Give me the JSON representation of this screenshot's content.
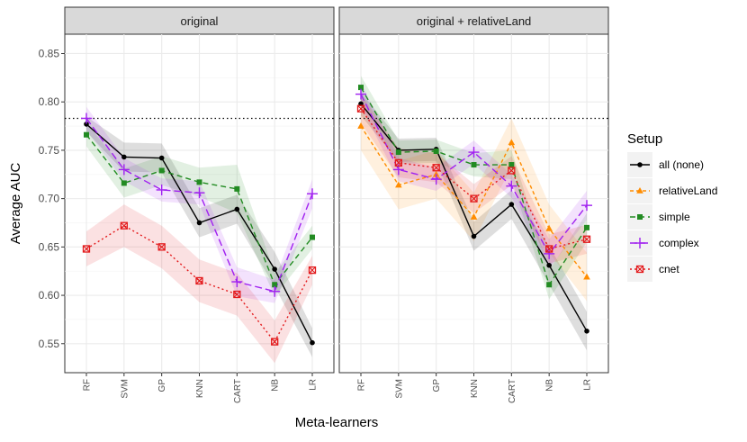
{
  "chart_data": {
    "type": "line",
    "xlabel": "Meta-learners",
    "ylabel": "Average AUC",
    "ylim": [
      0.52,
      0.87
    ],
    "yticks": [
      0.55,
      0.6,
      0.65,
      0.7,
      0.75,
      0.8,
      0.85
    ],
    "ytick_labels": [
      "0.55",
      "0.60",
      "0.65",
      "0.70",
      "0.75",
      "0.80",
      "0.85"
    ],
    "categories": [
      "RF",
      "SVM",
      "GP",
      "KNN",
      "CART",
      "NB",
      "LR"
    ],
    "reference_line": 0.783,
    "legend": {
      "title": "Setup",
      "placement": "right"
    },
    "panels": [
      {
        "title": "original",
        "series": [
          {
            "name": "all (none)",
            "color": "#000000",
            "dash": "",
            "marker": "circle",
            "values": [
              0.777,
              0.743,
              0.742,
              0.675,
              0.689,
              0.627,
              0.551
            ],
            "band_width": [
              0.008,
              0.015,
              0.015,
              0.015,
              0.015,
              0.018,
              0.015
            ]
          },
          {
            "name": "simple",
            "color": "#228B22",
            "dash": "6,4",
            "marker": "square",
            "values": [
              0.766,
              0.716,
              0.729,
              0.717,
              0.71,
              0.611,
              0.66
            ],
            "band_width": [
              0.012,
              0.015,
              0.015,
              0.015,
              0.025,
              0.012,
              0.012
            ]
          },
          {
            "name": "complex",
            "color": "#A020F0",
            "dash": "8,4",
            "marker": "plus",
            "values": [
              0.783,
              0.73,
              0.709,
              0.706,
              0.614,
              0.604,
              0.705
            ],
            "band_width": [
              0.012,
              0.012,
              0.012,
              0.012,
              0.015,
              0.012,
              0.015
            ]
          },
          {
            "name": "cnet",
            "color": "#E31A1C",
            "dash": "2,3",
            "marker": "boxx",
            "values": [
              0.648,
              0.672,
              0.65,
              0.615,
              0.601,
              0.552,
              0.626
            ],
            "band_width": [
              0.018,
              0.022,
              0.022,
              0.022,
              0.022,
              0.022,
              0.015
            ]
          }
        ]
      },
      {
        "title": "original + relativeLand",
        "series": [
          {
            "name": "all (none)",
            "color": "#000000",
            "dash": "",
            "marker": "circle",
            "values": [
              0.798,
              0.75,
              0.751,
              0.661,
              0.694,
              0.631,
              0.563
            ],
            "band_width": [
              0.012,
              0.012,
              0.012,
              0.015,
              0.015,
              0.02,
              0.02
            ]
          },
          {
            "name": "relativeLand",
            "color": "#FF8C00",
            "dash": "4,3",
            "marker": "triangle",
            "values": [
              0.775,
              0.714,
              0.725,
              0.681,
              0.758,
              0.669,
              0.619
            ],
            "band_width": [
              0.025,
              0.025,
              0.025,
              0.025,
              0.025,
              0.025,
              0.025
            ]
          },
          {
            "name": "simple",
            "color": "#228B22",
            "dash": "6,4",
            "marker": "square",
            "values": [
              0.815,
              0.748,
              0.749,
              0.735,
              0.735,
              0.611,
              0.67
            ],
            "band_width": [
              0.012,
              0.012,
              0.012,
              0.012,
              0.015,
              0.015,
              0.015
            ]
          },
          {
            "name": "complex",
            "color": "#A020F0",
            "dash": "8,4",
            "marker": "plus",
            "values": [
              0.808,
              0.73,
              0.72,
              0.748,
              0.713,
              0.643,
              0.693
            ],
            "band_width": [
              0.012,
              0.012,
              0.012,
              0.012,
              0.012,
              0.015,
              0.015
            ]
          },
          {
            "name": "cnet",
            "color": "#E31A1C",
            "dash": "2,3",
            "marker": "boxx",
            "values": [
              0.793,
              0.737,
              0.732,
              0.7,
              0.729,
              0.648,
              0.658
            ],
            "band_width": [
              0.015,
              0.015,
              0.015,
              0.015,
              0.015,
              0.015,
              0.015
            ]
          }
        ]
      }
    ]
  },
  "legend_entries": [
    {
      "name": "all (none)",
      "color": "#000000",
      "dash": "",
      "marker": "circle"
    },
    {
      "name": "relativeLand",
      "color": "#FF8C00",
      "dash": "4,3",
      "marker": "triangle"
    },
    {
      "name": "simple",
      "color": "#228B22",
      "dash": "6,4",
      "marker": "square"
    },
    {
      "name": "complex",
      "color": "#A020F0",
      "dash": "8,4",
      "marker": "plus"
    },
    {
      "name": "cnet",
      "color": "#E31A1C",
      "dash": "2,3",
      "marker": "boxx"
    }
  ]
}
